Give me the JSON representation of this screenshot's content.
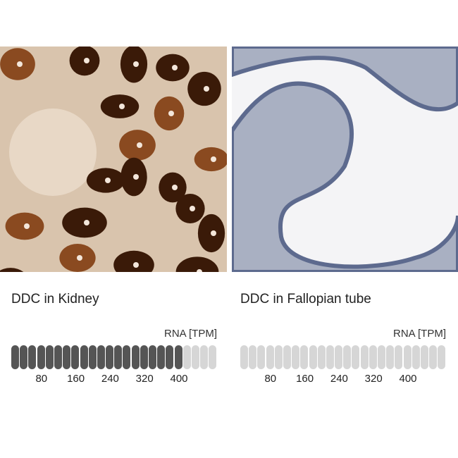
{
  "panels": [
    {
      "caption": "DDC in Kidney",
      "rna_label": "RNA [TPM]",
      "segments_total": 24,
      "segments_filled": 20,
      "ticks": [
        "80",
        "160",
        "240",
        "320",
        "400"
      ],
      "fill_color": "#555555",
      "empty_color": "#d6d6d6"
    },
    {
      "caption": "DDC in Fallopian tube",
      "rna_label": "RNA [TPM]",
      "segments_total": 24,
      "segments_filled": 0,
      "ticks": [
        "80",
        "160",
        "240",
        "320",
        "400"
      ],
      "fill_color": "#555555",
      "empty_color": "#d6d6d6"
    }
  ]
}
